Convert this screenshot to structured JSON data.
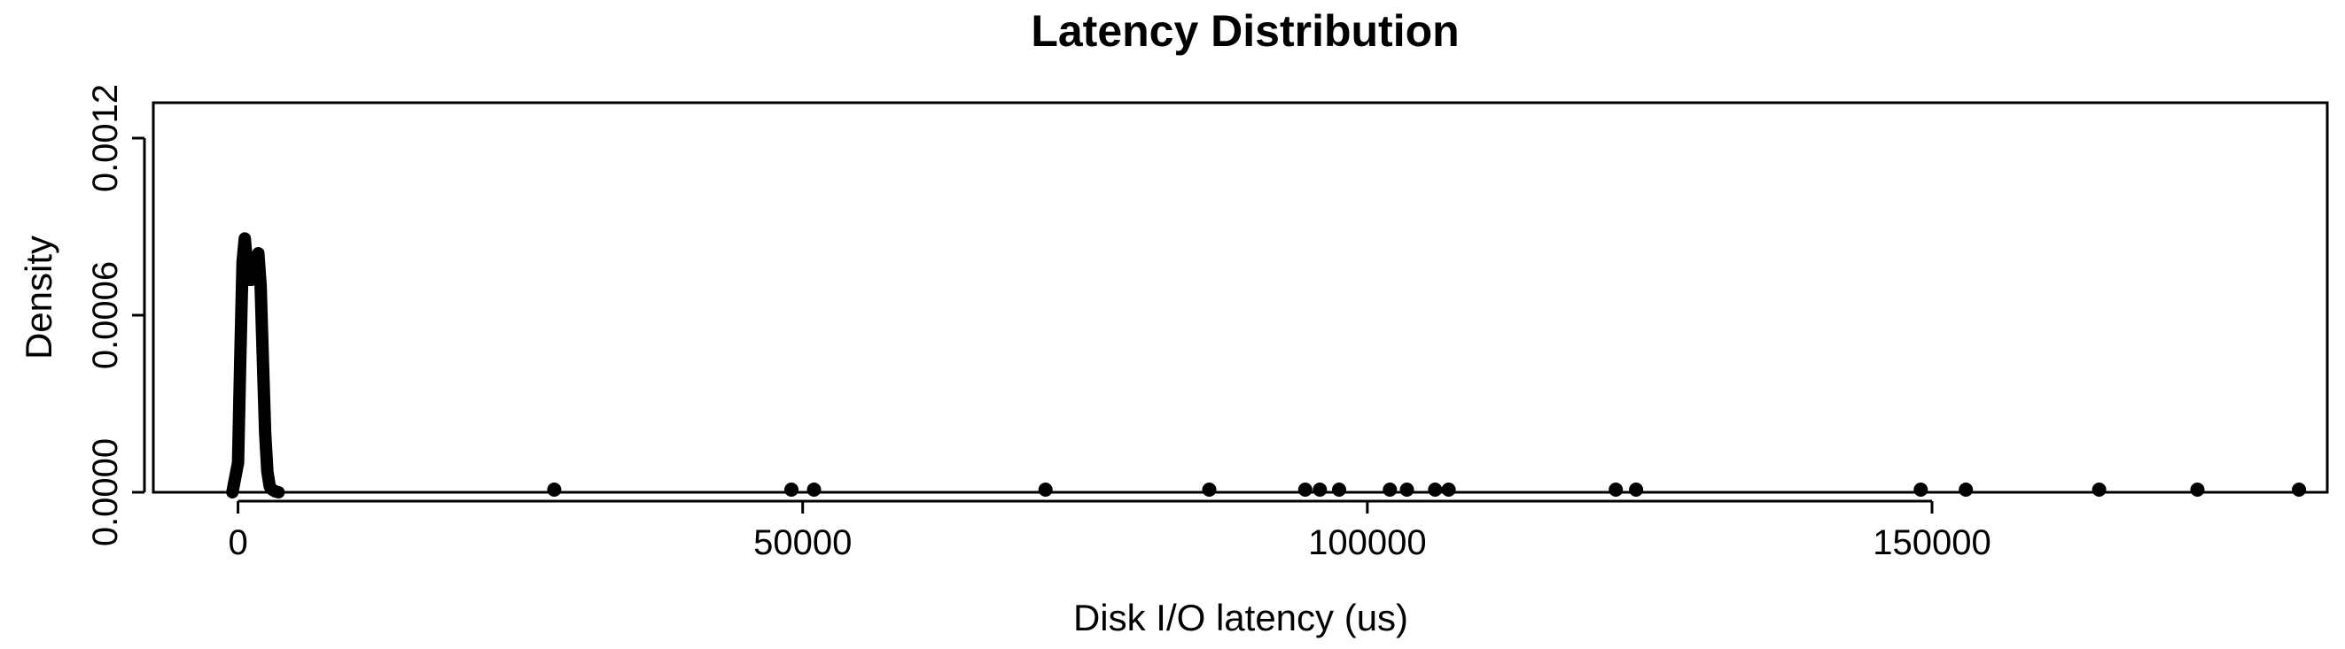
{
  "chart_data": {
    "type": "line",
    "title": "Latency Distribution",
    "xlabel": "Disk I/O latency (us)",
    "ylabel": "Density",
    "xlim": [
      -7500,
      185000
    ],
    "ylim": [
      0,
      0.00132
    ],
    "x_ticks": [
      0,
      50000,
      100000,
      150000
    ],
    "x_tick_labels": [
      "0",
      "50000",
      "100000",
      "150000"
    ],
    "y_ticks": [
      0,
      0.0006,
      0.0012
    ],
    "y_tick_labels": [
      "0.0000",
      "0.0006",
      "0.0012"
    ],
    "grid": false,
    "legend": "none",
    "series": [
      {
        "x": [
          -500,
          0,
          200,
          400,
          600,
          800,
          1000,
          1200,
          1400,
          1600,
          1800,
          2000,
          2200,
          2400,
          2600,
          2800,
          3000,
          3300,
          3600
        ],
        "y": [
          0,
          0.0001,
          0.00045,
          0.00078,
          0.00086,
          0.00077,
          0.00072,
          0.00072,
          0.00074,
          0.00079,
          0.00081,
          0.0007,
          0.00045,
          0.0002,
          7e-05,
          2e-05,
          1e-05,
          3e-06,
          0
        ]
      }
    ],
    "rug_points": [
      28000,
      49000,
      51000,
      71500,
      86000,
      94500,
      95800,
      97500,
      102000,
      103500,
      106000,
      107200,
      122000,
      123800,
      149000,
      153000,
      164800,
      173500,
      182500
    ],
    "color": "#000000"
  }
}
